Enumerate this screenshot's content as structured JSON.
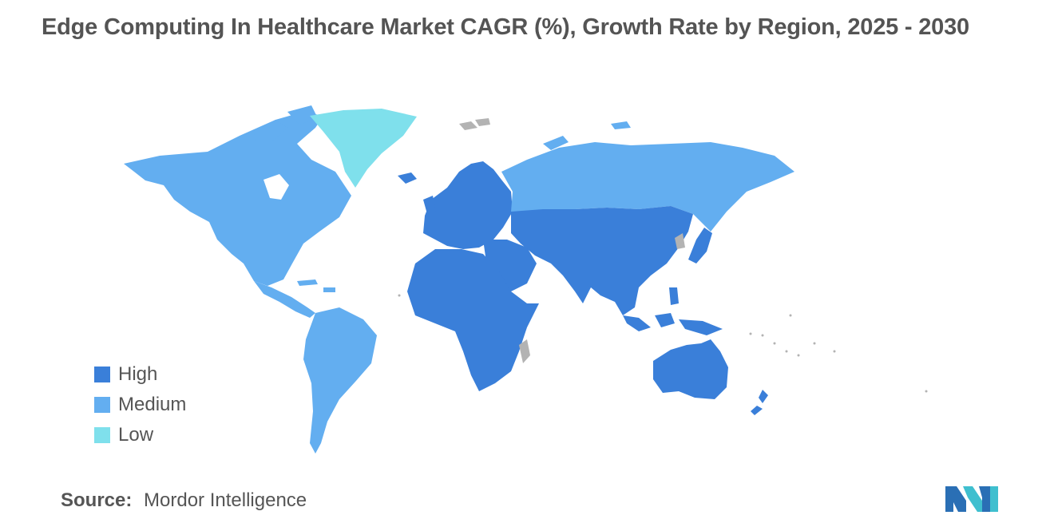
{
  "title": "Edge Computing In Healthcare Market CAGR (%), Growth Rate by Region, 2025 - 2030",
  "legend": {
    "items": [
      {
        "label": "High",
        "color": "#3a7fd9"
      },
      {
        "label": "Medium",
        "color": "#63aef0"
      },
      {
        "label": "Low",
        "color": "#7fe0ec"
      }
    ]
  },
  "colors": {
    "high": "#3a7fd9",
    "medium": "#63aef0",
    "low": "#7fe0ec",
    "no_data": "#b3b3b3"
  },
  "regions": {
    "north_america": "Medium",
    "south_america": "Medium",
    "greenland": "Low",
    "europe": "High",
    "russia": "Medium",
    "asia": "High",
    "middle_east": "High",
    "africa": "High",
    "oceania": "High"
  },
  "source": {
    "label": "Source:",
    "text": "Mordor Intelligence"
  },
  "logo": {
    "icon": "mordor-intelligence-logo"
  }
}
